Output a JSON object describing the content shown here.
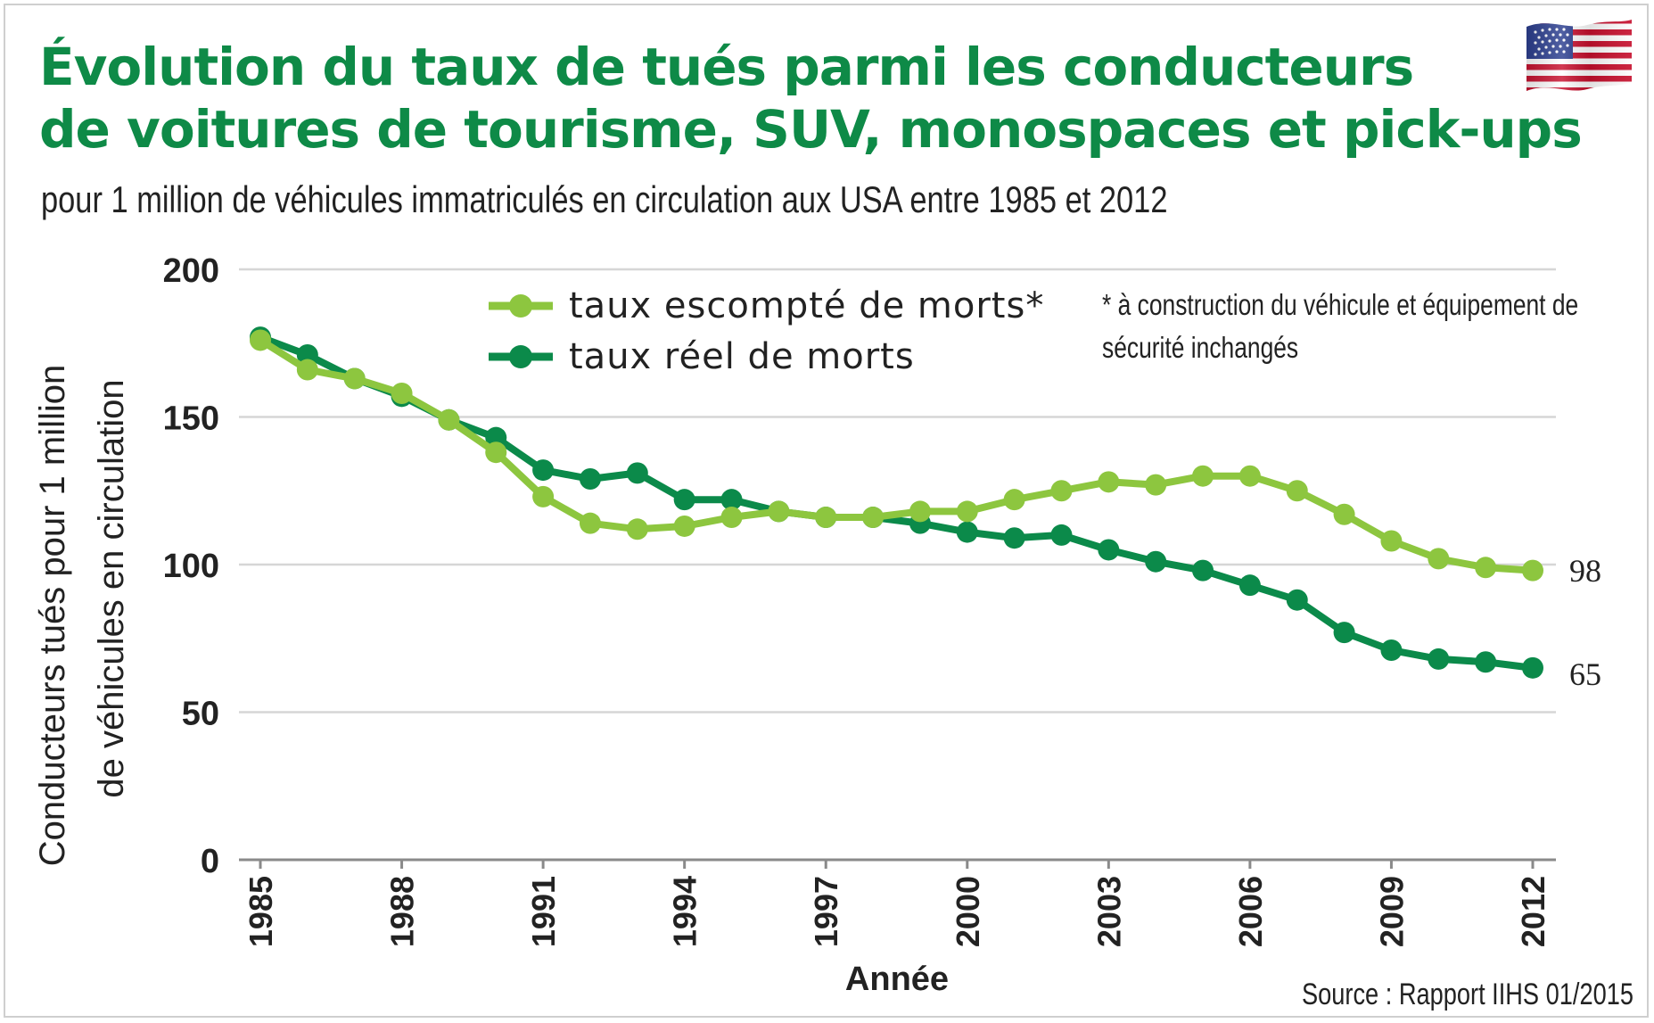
{
  "header": {
    "title_line1": "Évolution du taux de tués parmi les conducteurs",
    "title_line2": "de voitures de tourisme, SUV, monospaces et pick-ups",
    "subtitle": "pour 1 million de véhicules immatriculés en circulation aux USA entre 1985 et 2012"
  },
  "note": {
    "line1": "* à construction du véhicule et équipement de",
    "line2": "sécurité inchangés"
  },
  "source": "Source : Rapport IIHS 01/2015",
  "flag_icon": "usa-flag-icon",
  "colors": {
    "title": "#0e8a47",
    "expected": "#8dc63f",
    "actual": "#0b8a4a",
    "grid": "#d6d6d6"
  },
  "chart_data": {
    "type": "line",
    "title": "Évolution du taux de tués parmi les conducteurs de voitures de tourisme, SUV, monospaces et pick-ups",
    "xlabel": "Année",
    "ylabel_line1": "Conducteurs tués pour 1 million",
    "ylabel_line2": "de véhicules en circulation",
    "ylim": [
      0,
      200
    ],
    "yticks": [
      0,
      50,
      100,
      150,
      200
    ],
    "xticks": [
      1985,
      1988,
      1991,
      1994,
      1997,
      2000,
      2003,
      2006,
      2009,
      2012
    ],
    "grid": "horizontal",
    "legend_position": "top",
    "x": [
      1985,
      1986,
      1987,
      1988,
      1989,
      1990,
      1991,
      1992,
      1993,
      1994,
      1995,
      1996,
      1997,
      1998,
      1999,
      2000,
      2001,
      2002,
      2003,
      2004,
      2005,
      2006,
      2007,
      2008,
      2009,
      2010,
      2011,
      2012
    ],
    "series": [
      {
        "name": "taux escompté de morts*",
        "color": "#8dc63f",
        "values": [
          176,
          166,
          163,
          158,
          149,
          138,
          123,
          114,
          112,
          113,
          116,
          118,
          116,
          116,
          118,
          118,
          122,
          125,
          128,
          127,
          130,
          130,
          125,
          117,
          108,
          102,
          99,
          98
        ]
      },
      {
        "name": "taux réel de morts",
        "color": "#0b8a4a",
        "values": [
          177,
          171,
          163,
          157,
          149,
          143,
          132,
          129,
          131,
          122,
          122,
          118,
          116,
          116,
          114,
          111,
          109,
          110,
          105,
          101,
          98,
          93,
          88,
          77,
          71,
          68,
          67,
          65
        ]
      }
    ],
    "end_labels": [
      "98",
      "65"
    ]
  }
}
